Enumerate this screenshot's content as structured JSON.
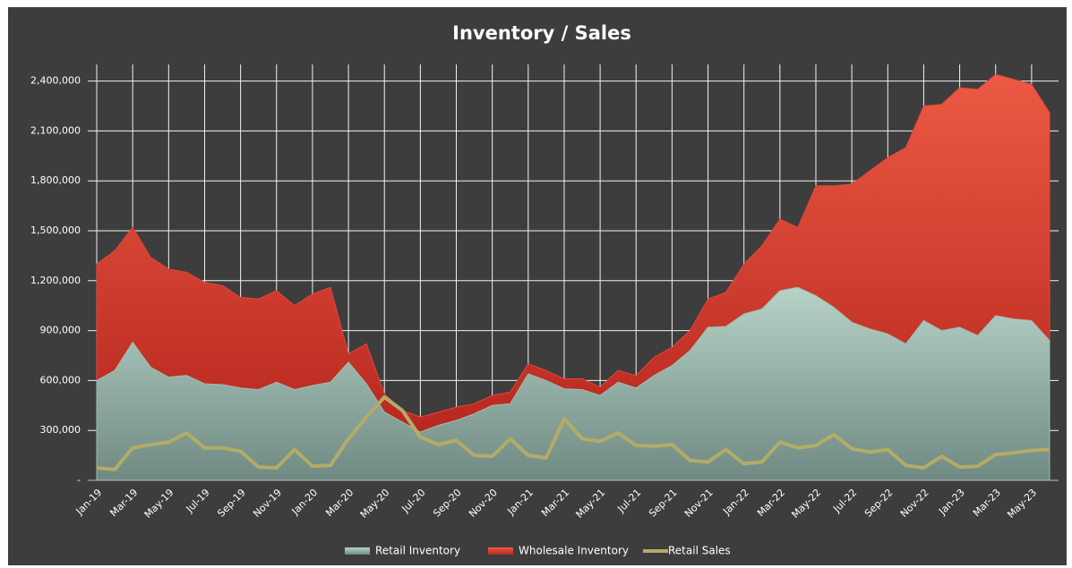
{
  "chart_data": {
    "type": "area",
    "title": "Inventory / Sales",
    "categories": [
      "Jan-19",
      null,
      "Mar-19",
      null,
      "May-19",
      null,
      "Jul-19",
      null,
      "Sep-19",
      null,
      "Nov-19",
      null,
      "Jan-20",
      null,
      "Mar-20",
      null,
      "May-20",
      null,
      "Jul-20",
      null,
      "Sep-20",
      null,
      "Nov-20",
      null,
      "Jan-21",
      null,
      "Mar-21",
      null,
      "May-21",
      null,
      "Jul-21",
      null,
      "Sep-21",
      null,
      "Nov-21",
      null,
      "Jan-22",
      null,
      "Mar-22",
      null,
      "May-22",
      null,
      "Jul-22",
      null,
      "Sep-22",
      null,
      "Nov-22",
      null,
      "Jan-23",
      null,
      "Mar-23",
      null,
      "May-23",
      null
    ],
    "stacked": true,
    "series": [
      {
        "name": "Retail Inventory",
        "color": "#9fbcb1",
        "values": [
          600000,
          660000,
          830000,
          680000,
          620000,
          630000,
          580000,
          575000,
          555000,
          545000,
          590000,
          545000,
          570000,
          590000,
          710000,
          580000,
          410000,
          350000,
          290000,
          330000,
          360000,
          400000,
          450000,
          460000,
          640000,
          600000,
          550000,
          545000,
          510000,
          590000,
          555000,
          630000,
          690000,
          780000,
          920000,
          925000,
          1000000,
          1030000,
          1140000,
          1160000,
          1110000,
          1040000,
          950000,
          910000,
          880000,
          820000,
          960000,
          900000,
          920000,
          870000,
          990000,
          970000,
          960000,
          840000
        ]
      },
      {
        "name": "Wholesale Inventory",
        "color": "#e2463a",
        "values": [
          700000,
          720000,
          690000,
          660000,
          650000,
          620000,
          610000,
          595000,
          545000,
          545000,
          550000,
          505000,
          550000,
          570000,
          50000,
          240000,
          110000,
          70000,
          90000,
          80000,
          80000,
          60000,
          60000,
          70000,
          60000,
          60000,
          60000,
          65000,
          50000,
          70000,
          75000,
          110000,
          110000,
          120000,
          170000,
          205000,
          300000,
          380000,
          430000,
          360000,
          660000,
          730000,
          830000,
          950000,
          1060000,
          1180000,
          1290000,
          1360000,
          1440000,
          1480000,
          1450000,
          1440000,
          1420000,
          1370000
        ]
      },
      {
        "name": "Retail Sales",
        "color": "#b3ab68",
        "type": "line",
        "values": [
          75000,
          65000,
          195000,
          215000,
          230000,
          285000,
          195000,
          195000,
          175000,
          80000,
          75000,
          185000,
          85000,
          90000,
          250000,
          380000,
          500000,
          420000,
          260000,
          215000,
          240000,
          150000,
          145000,
          250000,
          150000,
          135000,
          370000,
          250000,
          235000,
          285000,
          210000,
          205000,
          215000,
          120000,
          110000,
          185000,
          100000,
          110000,
          230000,
          195000,
          210000,
          275000,
          190000,
          170000,
          185000,
          90000,
          75000,
          145000,
          80000,
          85000,
          155000,
          165000,
          180000,
          185000
        ]
      }
    ],
    "ylim": [
      0,
      2500000
    ],
    "yticks": [
      {
        "value": 0,
        "label": "-"
      },
      {
        "value": 300000,
        "label": "300,000"
      },
      {
        "value": 600000,
        "label": "600,000"
      },
      {
        "value": 900000,
        "label": "900,000"
      },
      {
        "value": 1200000,
        "label": "1,200,000"
      },
      {
        "value": 1500000,
        "label": "1,500,000"
      },
      {
        "value": 1800000,
        "label": "1,800,000"
      },
      {
        "value": 2100000,
        "label": "2,100,000"
      },
      {
        "value": 2400000,
        "label": "2,400,000"
      }
    ],
    "grid": true,
    "legend": "bottom"
  }
}
